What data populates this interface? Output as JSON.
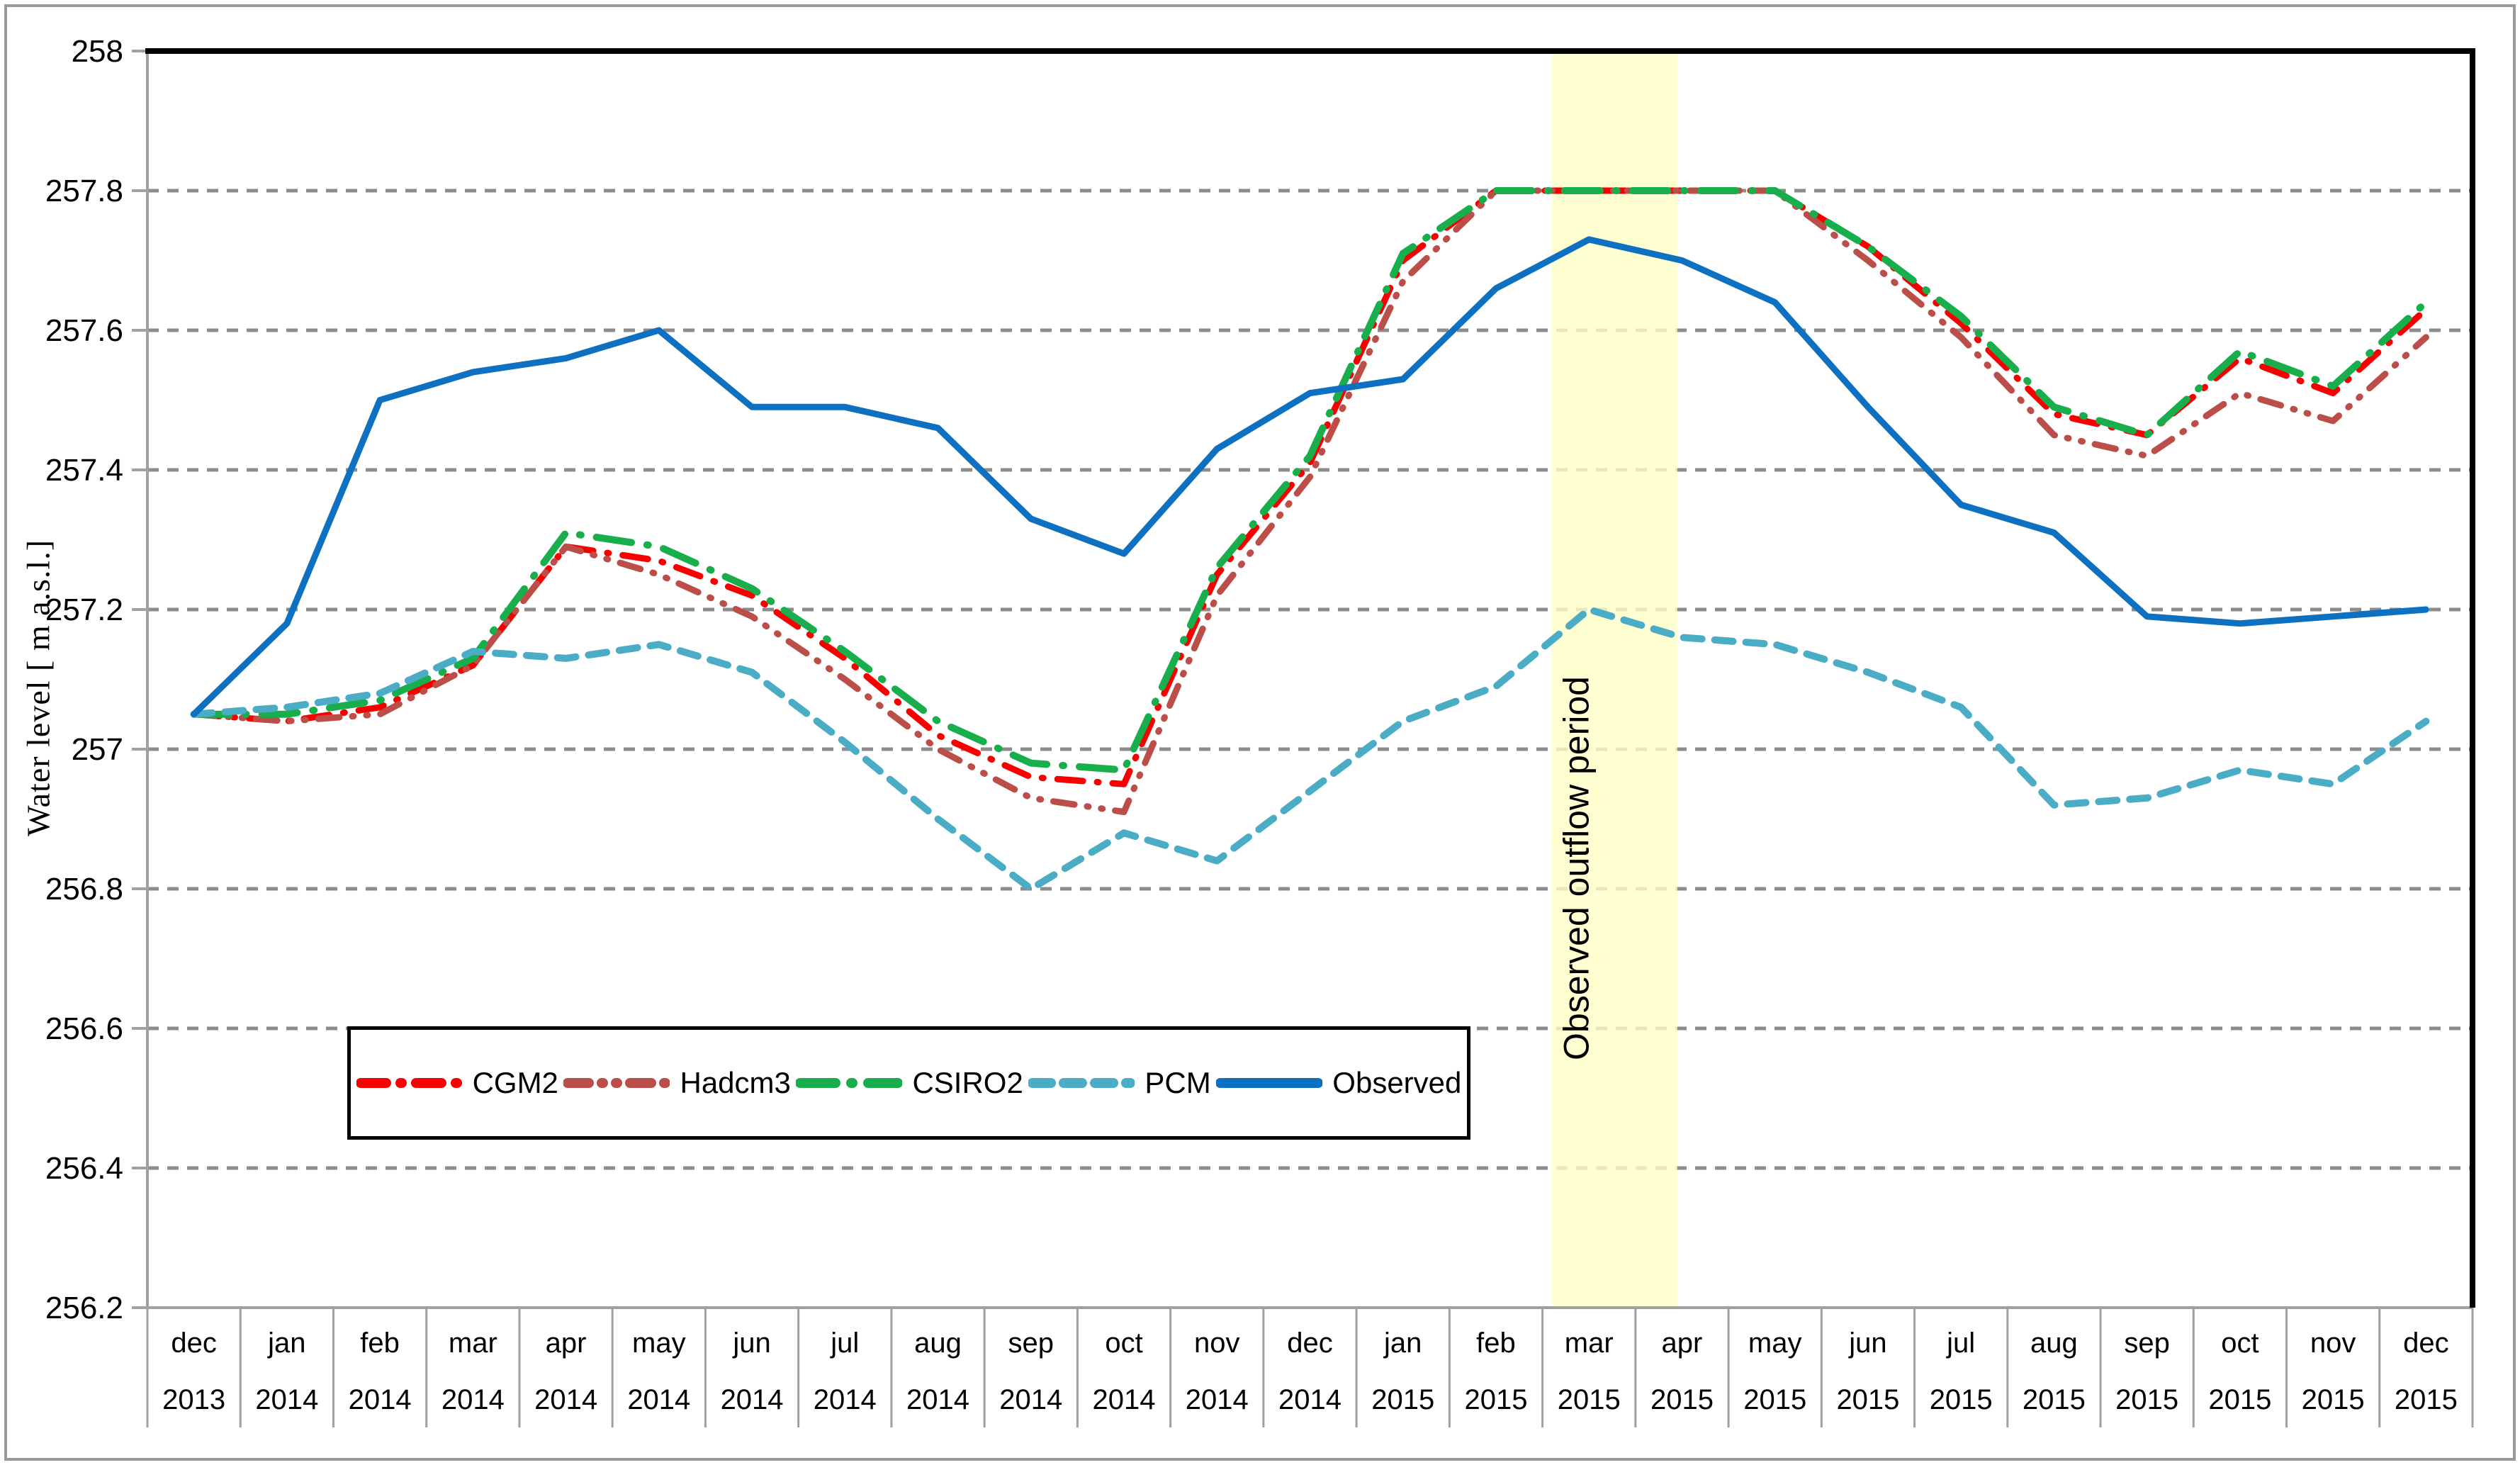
{
  "figure": {
    "kind": "excel-line-chart-screenshot",
    "background": "#ffffff",
    "outer_border_color": "#9a9a9a"
  },
  "chart_data": {
    "type": "line",
    "title": "",
    "xlabel": "",
    "ylabel": "Water level [ m a.s.l.]",
    "ylim": [
      256.2,
      258
    ],
    "ytick_step": 0.2,
    "ytick_labels": [
      "258",
      "257.8",
      "257.6",
      "257.4",
      "257.2",
      "257",
      "256.8",
      "256.6",
      "256.4",
      "256.2"
    ],
    "grid": "horizontal-dashed-gray",
    "legend_position": "inside-bottom-left-boxed",
    "categories": [
      {
        "month": "dec",
        "year": "2013"
      },
      {
        "month": "jan",
        "year": "2014"
      },
      {
        "month": "feb",
        "year": "2014"
      },
      {
        "month": "mar",
        "year": "2014"
      },
      {
        "month": "apr",
        "year": "2014"
      },
      {
        "month": "may",
        "year": "2014"
      },
      {
        "month": "jun",
        "year": "2014"
      },
      {
        "month": "jul",
        "year": "2014"
      },
      {
        "month": "aug",
        "year": "2014"
      },
      {
        "month": "sep",
        "year": "2014"
      },
      {
        "month": "oct",
        "year": "2014"
      },
      {
        "month": "nov",
        "year": "2014"
      },
      {
        "month": "dec",
        "year": "2014"
      },
      {
        "month": "jan",
        "year": "2015"
      },
      {
        "month": "feb",
        "year": "2015"
      },
      {
        "month": "mar",
        "year": "2015"
      },
      {
        "month": "apr",
        "year": "2015"
      },
      {
        "month": "may",
        "year": "2015"
      },
      {
        "month": "jun",
        "year": "2015"
      },
      {
        "month": "jul",
        "year": "2015"
      },
      {
        "month": "aug",
        "year": "2015"
      },
      {
        "month": "sep",
        "year": "2015"
      },
      {
        "month": "oct",
        "year": "2015"
      },
      {
        "month": "nov",
        "year": "2015"
      },
      {
        "month": "dec",
        "year": "2015"
      }
    ],
    "series": [
      {
        "name": "CGM2",
        "color": "#f80000",
        "style": "dash-dot",
        "values": [
          257.05,
          257.04,
          257.06,
          257.12,
          257.29,
          257.27,
          257.22,
          257.13,
          257.02,
          256.96,
          256.95,
          257.25,
          257.41,
          257.7,
          257.8,
          257.8,
          257.8,
          257.8,
          257.72,
          257.61,
          257.48,
          257.45,
          257.56,
          257.51,
          257.63
        ]
      },
      {
        "name": "Hadcm3",
        "color": "#bb4e49",
        "style": "dash-dot-dot",
        "values": [
          257.05,
          257.04,
          257.05,
          257.12,
          257.29,
          257.25,
          257.19,
          257.1,
          257.0,
          256.93,
          256.91,
          257.22,
          257.39,
          257.67,
          257.8,
          257.8,
          257.8,
          257.8,
          257.7,
          257.59,
          257.45,
          257.42,
          257.51,
          257.47,
          257.59
        ]
      },
      {
        "name": "CSIRO2",
        "color": "#17ae4b",
        "style": "long-dash-dot",
        "values": [
          257.05,
          257.05,
          257.07,
          257.13,
          257.31,
          257.29,
          257.23,
          257.14,
          257.04,
          256.98,
          256.97,
          257.26,
          257.42,
          257.71,
          257.8,
          257.8,
          257.8,
          257.8,
          257.72,
          257.62,
          257.49,
          257.45,
          257.57,
          257.52,
          257.64
        ]
      },
      {
        "name": "PCM",
        "color": "#4bacc6",
        "style": "dashed",
        "values": [
          257.05,
          257.06,
          257.08,
          257.14,
          257.13,
          257.15,
          257.11,
          257.01,
          256.9,
          256.8,
          256.88,
          256.84,
          256.94,
          257.04,
          257.09,
          257.2,
          257.16,
          257.15,
          257.11,
          257.06,
          256.92,
          256.93,
          256.97,
          256.95,
          257.04
        ]
      },
      {
        "name": "Observed",
        "color": "#0d70c0",
        "style": "solid",
        "values": [
          257.05,
          257.18,
          257.5,
          257.54,
          257.56,
          257.6,
          257.49,
          257.49,
          257.46,
          257.33,
          257.28,
          257.43,
          257.51,
          257.53,
          257.66,
          257.73,
          257.7,
          257.64,
          257.49,
          257.35,
          257.31,
          257.19,
          257.18,
          257.19,
          257.2
        ]
      }
    ],
    "annotation_band": {
      "label": "Observed outflow period",
      "covers": "mar 2015 - apr 2015",
      "start_index": 14.6,
      "end_index": 15.95,
      "color": "#ffffc5"
    }
  },
  "colors": {
    "gridline": "#8c8c8c",
    "axis_gray": "#a0a0a0",
    "plot_border_black": "#000000"
  }
}
